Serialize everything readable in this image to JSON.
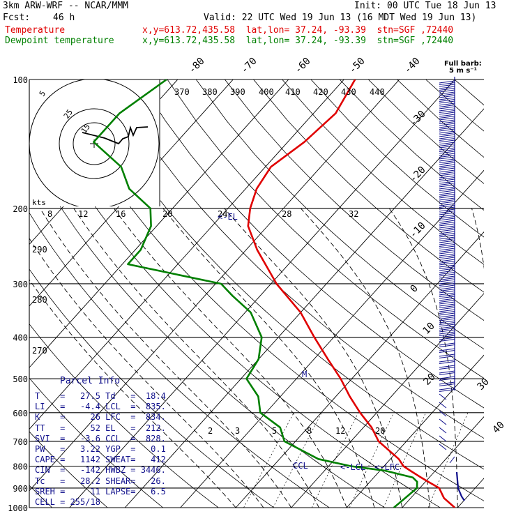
{
  "header": {
    "model": "3km ARW-WRF -- NCAR/MMM",
    "init": "Init: 00 UTC Tue 18 Jun 13",
    "fcst_label": "Fcst:",
    "fcst_value": "46 h",
    "valid": "Valid: 22 UTC Wed 19 Jun 13 (16 MDT Wed 19 Jun 13)",
    "temp_label": "Temperature",
    "dew_label": "Dewpoint temperature",
    "loc_temp": "x,y=613.72,435.58  lat,lon= 37.24, -93.39  stn=SGF ,72440",
    "loc_dew": "x,y=613.72,435.58  lat,lon= 37.24, -93.39  stn=SGF ,72440"
  },
  "barb_legend": {
    "line1": "Full barb:",
    "line2": "5 m s⁻¹"
  },
  "hodograph": {
    "ring_labels": [
      "5",
      "25",
      "15"
    ],
    "unit": "kts",
    "speed_labels": [
      "8",
      "12",
      "16",
      "20",
      "24",
      "28",
      "32"
    ]
  },
  "parcel_info": {
    "title": "Parcel Info",
    "rows": [
      [
        "T",
        "27.5",
        "Td",
        "18.4"
      ],
      [
        "LI",
        "-4.4",
        "LCL",
        "835."
      ],
      [
        "K",
        "26",
        "LFC",
        "834."
      ],
      [
        "TT",
        "52",
        "EL",
        "212."
      ],
      [
        "SVI",
        "-3.6",
        "CCL",
        "828."
      ],
      [
        "PW",
        "3.22",
        "YGP",
        "0.1"
      ],
      [
        "CAPE",
        "1142",
        "SWEAT",
        "412"
      ],
      [
        "CIN",
        "-142",
        "HWBZ",
        "3446."
      ],
      [
        "Tc",
        "28.2",
        "SHEAR",
        "26."
      ],
      [
        "SREH",
        "11",
        "LAPSE",
        "6.5"
      ],
      [
        "CELL",
        "255/18",
        "",
        ""
      ]
    ]
  },
  "annotations": {
    "el": "<-EL",
    "ccl": "CCL",
    "lcl": "<-LCL",
    "lfc": "<-LFC",
    "m": "M"
  },
  "chart_data": {
    "type": "line",
    "title": "",
    "ylabel": "",
    "y_scale": "log-pressure (hPa), inverted",
    "pressure_levels": [
      100,
      200,
      300,
      400,
      500,
      600,
      700,
      800,
      900,
      1000
    ],
    "isotherm_labels": [
      "-80",
      "-70",
      "-60",
      "-50",
      "-40",
      "-30",
      "-20",
      "-10",
      "0",
      "10",
      "20",
      "30",
      "40"
    ],
    "theta_labels": [
      "370",
      "380",
      "390",
      "400",
      "410",
      "420",
      "430",
      "440",
      "290",
      "280",
      "270"
    ],
    "mixing_ratio_labels": [
      "2",
      "3",
      "5",
      "8",
      "12",
      "20"
    ],
    "series": [
      {
        "name": "Temperature",
        "color": "#e00000",
        "p": [
          1000,
          950,
          900,
          870,
          850,
          820,
          800,
          770,
          700,
          650,
          600,
          550,
          500,
          450,
          400,
          350,
          300,
          250,
          220,
          200,
          180,
          160,
          140,
          120,
          100
        ],
        "t": [
          29.5,
          26.0,
          23.5,
          20.5,
          18.5,
          15.5,
          13.5,
          11.5,
          5.0,
          1.5,
          -3.0,
          -7.5,
          -12.0,
          -17.5,
          -23.5,
          -30.0,
          -39.0,
          -48.0,
          -53.5,
          -56.0,
          -58.0,
          -59.0,
          -57.0,
          -56.0,
          -58.0
        ]
      },
      {
        "name": "Dewpoint temperature",
        "color": "#008000",
        "p": [
          1000,
          950,
          900,
          870,
          850,
          820,
          800,
          770,
          700,
          650,
          600,
          550,
          500,
          450,
          400,
          350,
          320,
          300,
          270,
          250,
          220,
          200,
          180,
          160,
          140,
          120,
          100
        ],
        "t": [
          18.5,
          19.0,
          19.5,
          18.5,
          17.0,
          11.0,
          4.0,
          -3.0,
          -12.0,
          -15.0,
          -21.0,
          -24.0,
          -29.0,
          -30.0,
          -33.0,
          -39.0,
          -45.0,
          -49.0,
          -69.0,
          -69.0,
          -71.0,
          -74.0,
          -81.0,
          -86.0,
          -95.0,
          -95.0,
          -92.0
        ]
      }
    ]
  }
}
